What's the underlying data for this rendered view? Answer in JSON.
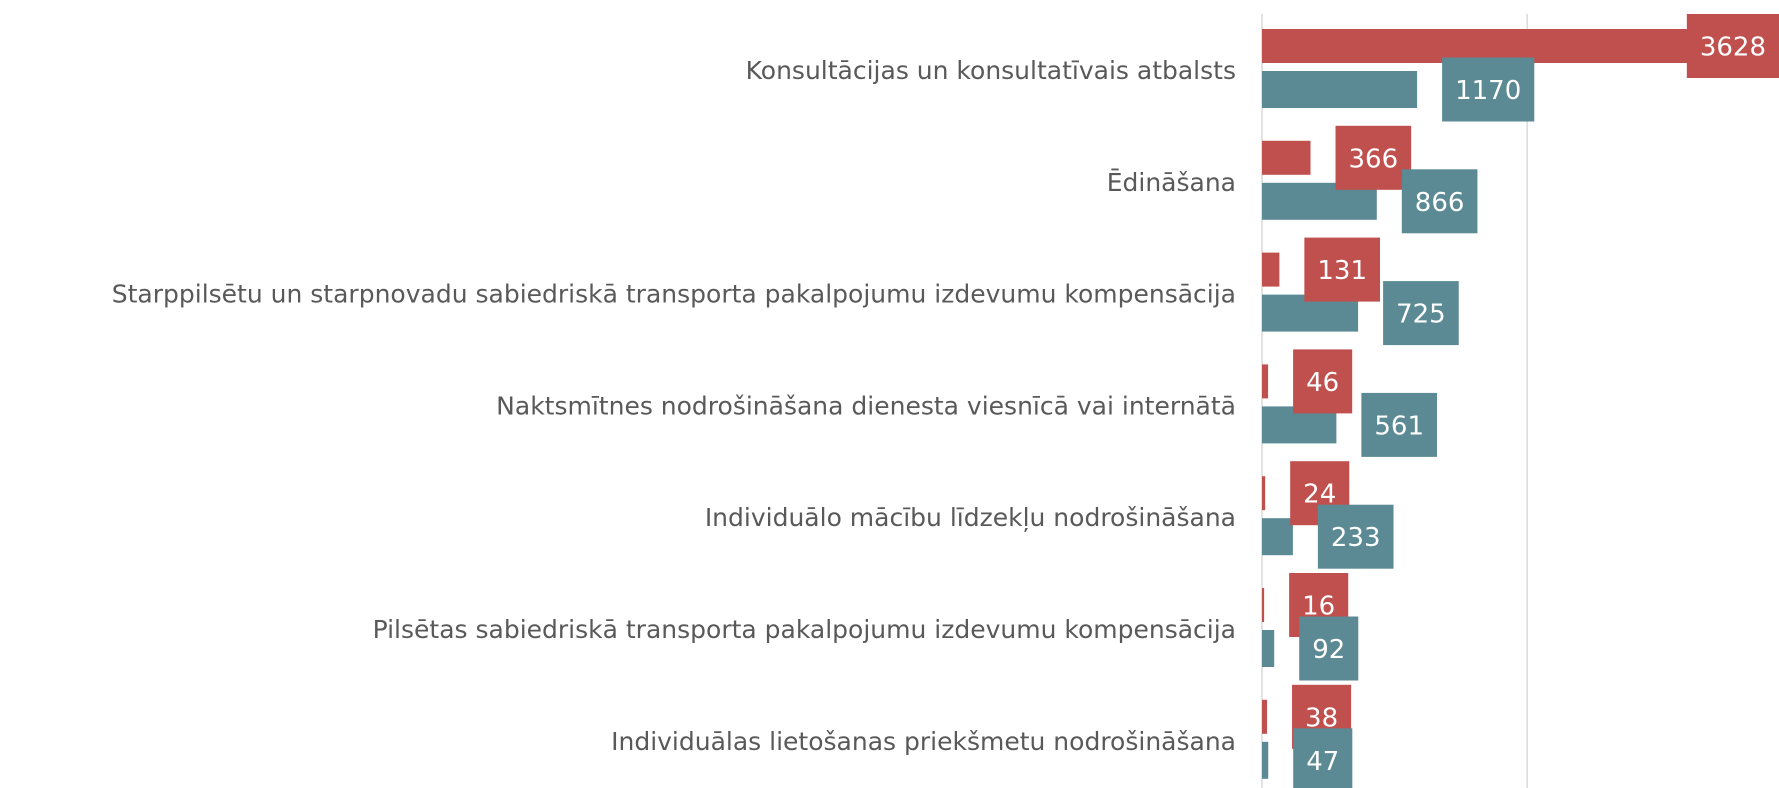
{
  "chart_data": {
    "type": "bar",
    "orientation": "horizontal",
    "categories": [
      "Konsultācijas un konsultatīvais atbalsts",
      "Ēdināšana",
      "Starppilsētu un starpnovadu sabiedriskā transporta pakalpojumu izdevumu kompensācija",
      "Naktsmītnes nodrošināšana dienesta viesnīcā vai internātā",
      "Individuālo mācību līdzekļu nodrošināšana",
      "Pilsētas sabiedriskā transporta pakalpojumu izdevumu kompensācija",
      "Individuālas lietošanas priekšmetu nodrošināšana"
    ],
    "series": [
      {
        "color": "#c0504d",
        "values": [
          3628,
          366,
          131,
          46,
          24,
          16,
          38
        ]
      },
      {
        "color": "#5b8a94",
        "values": [
          1170,
          866,
          725,
          561,
          233,
          92,
          47
        ]
      }
    ],
    "xlim": [
      0,
      3900
    ],
    "xticks": [
      0,
      2000
    ],
    "grid": true
  }
}
